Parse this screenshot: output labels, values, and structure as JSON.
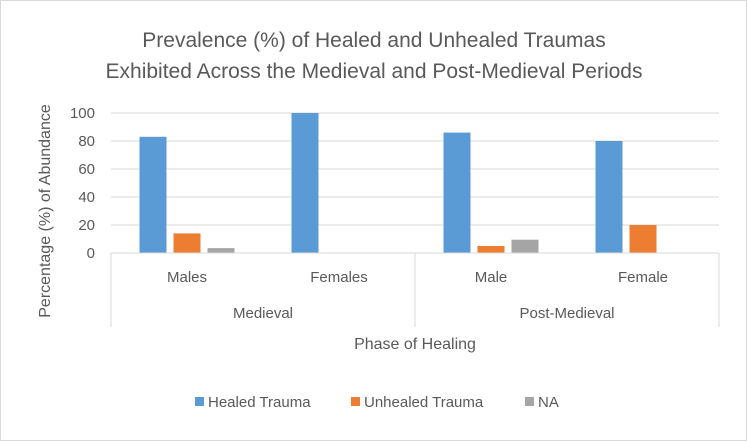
{
  "chart_data": {
    "type": "bar",
    "title": [
      "Prevalence (%) of Healed and Unhealed Traumas",
      "Exhibited Across the Medieval and Post-Medieval Periods"
    ],
    "xlabel": "Phase of Healing",
    "ylabel": "Percentage (%) of Abundance",
    "ylim": [
      0,
      100
    ],
    "yticks": [
      0,
      20,
      40,
      60,
      80,
      100
    ],
    "grid": true,
    "legend_position": "bottom",
    "groups": [
      {
        "label": "Medieval",
        "categories": [
          "Males",
          "Females"
        ]
      },
      {
        "label": "Post-Medieval",
        "categories": [
          "Male",
          "Female"
        ]
      }
    ],
    "categories": [
      "Males",
      "Females",
      "Male",
      "Female"
    ],
    "series": [
      {
        "name": "Healed Trauma",
        "color": "#5b9bd5",
        "values": [
          83,
          100,
          86,
          80
        ]
      },
      {
        "name": "Unhealed Trauma",
        "color": "#ed7d31",
        "values": [
          14,
          0,
          5,
          20
        ]
      },
      {
        "name": "NA",
        "color": "#a5a5a5",
        "values": [
          3.5,
          0,
          9.5,
          0
        ]
      }
    ]
  }
}
